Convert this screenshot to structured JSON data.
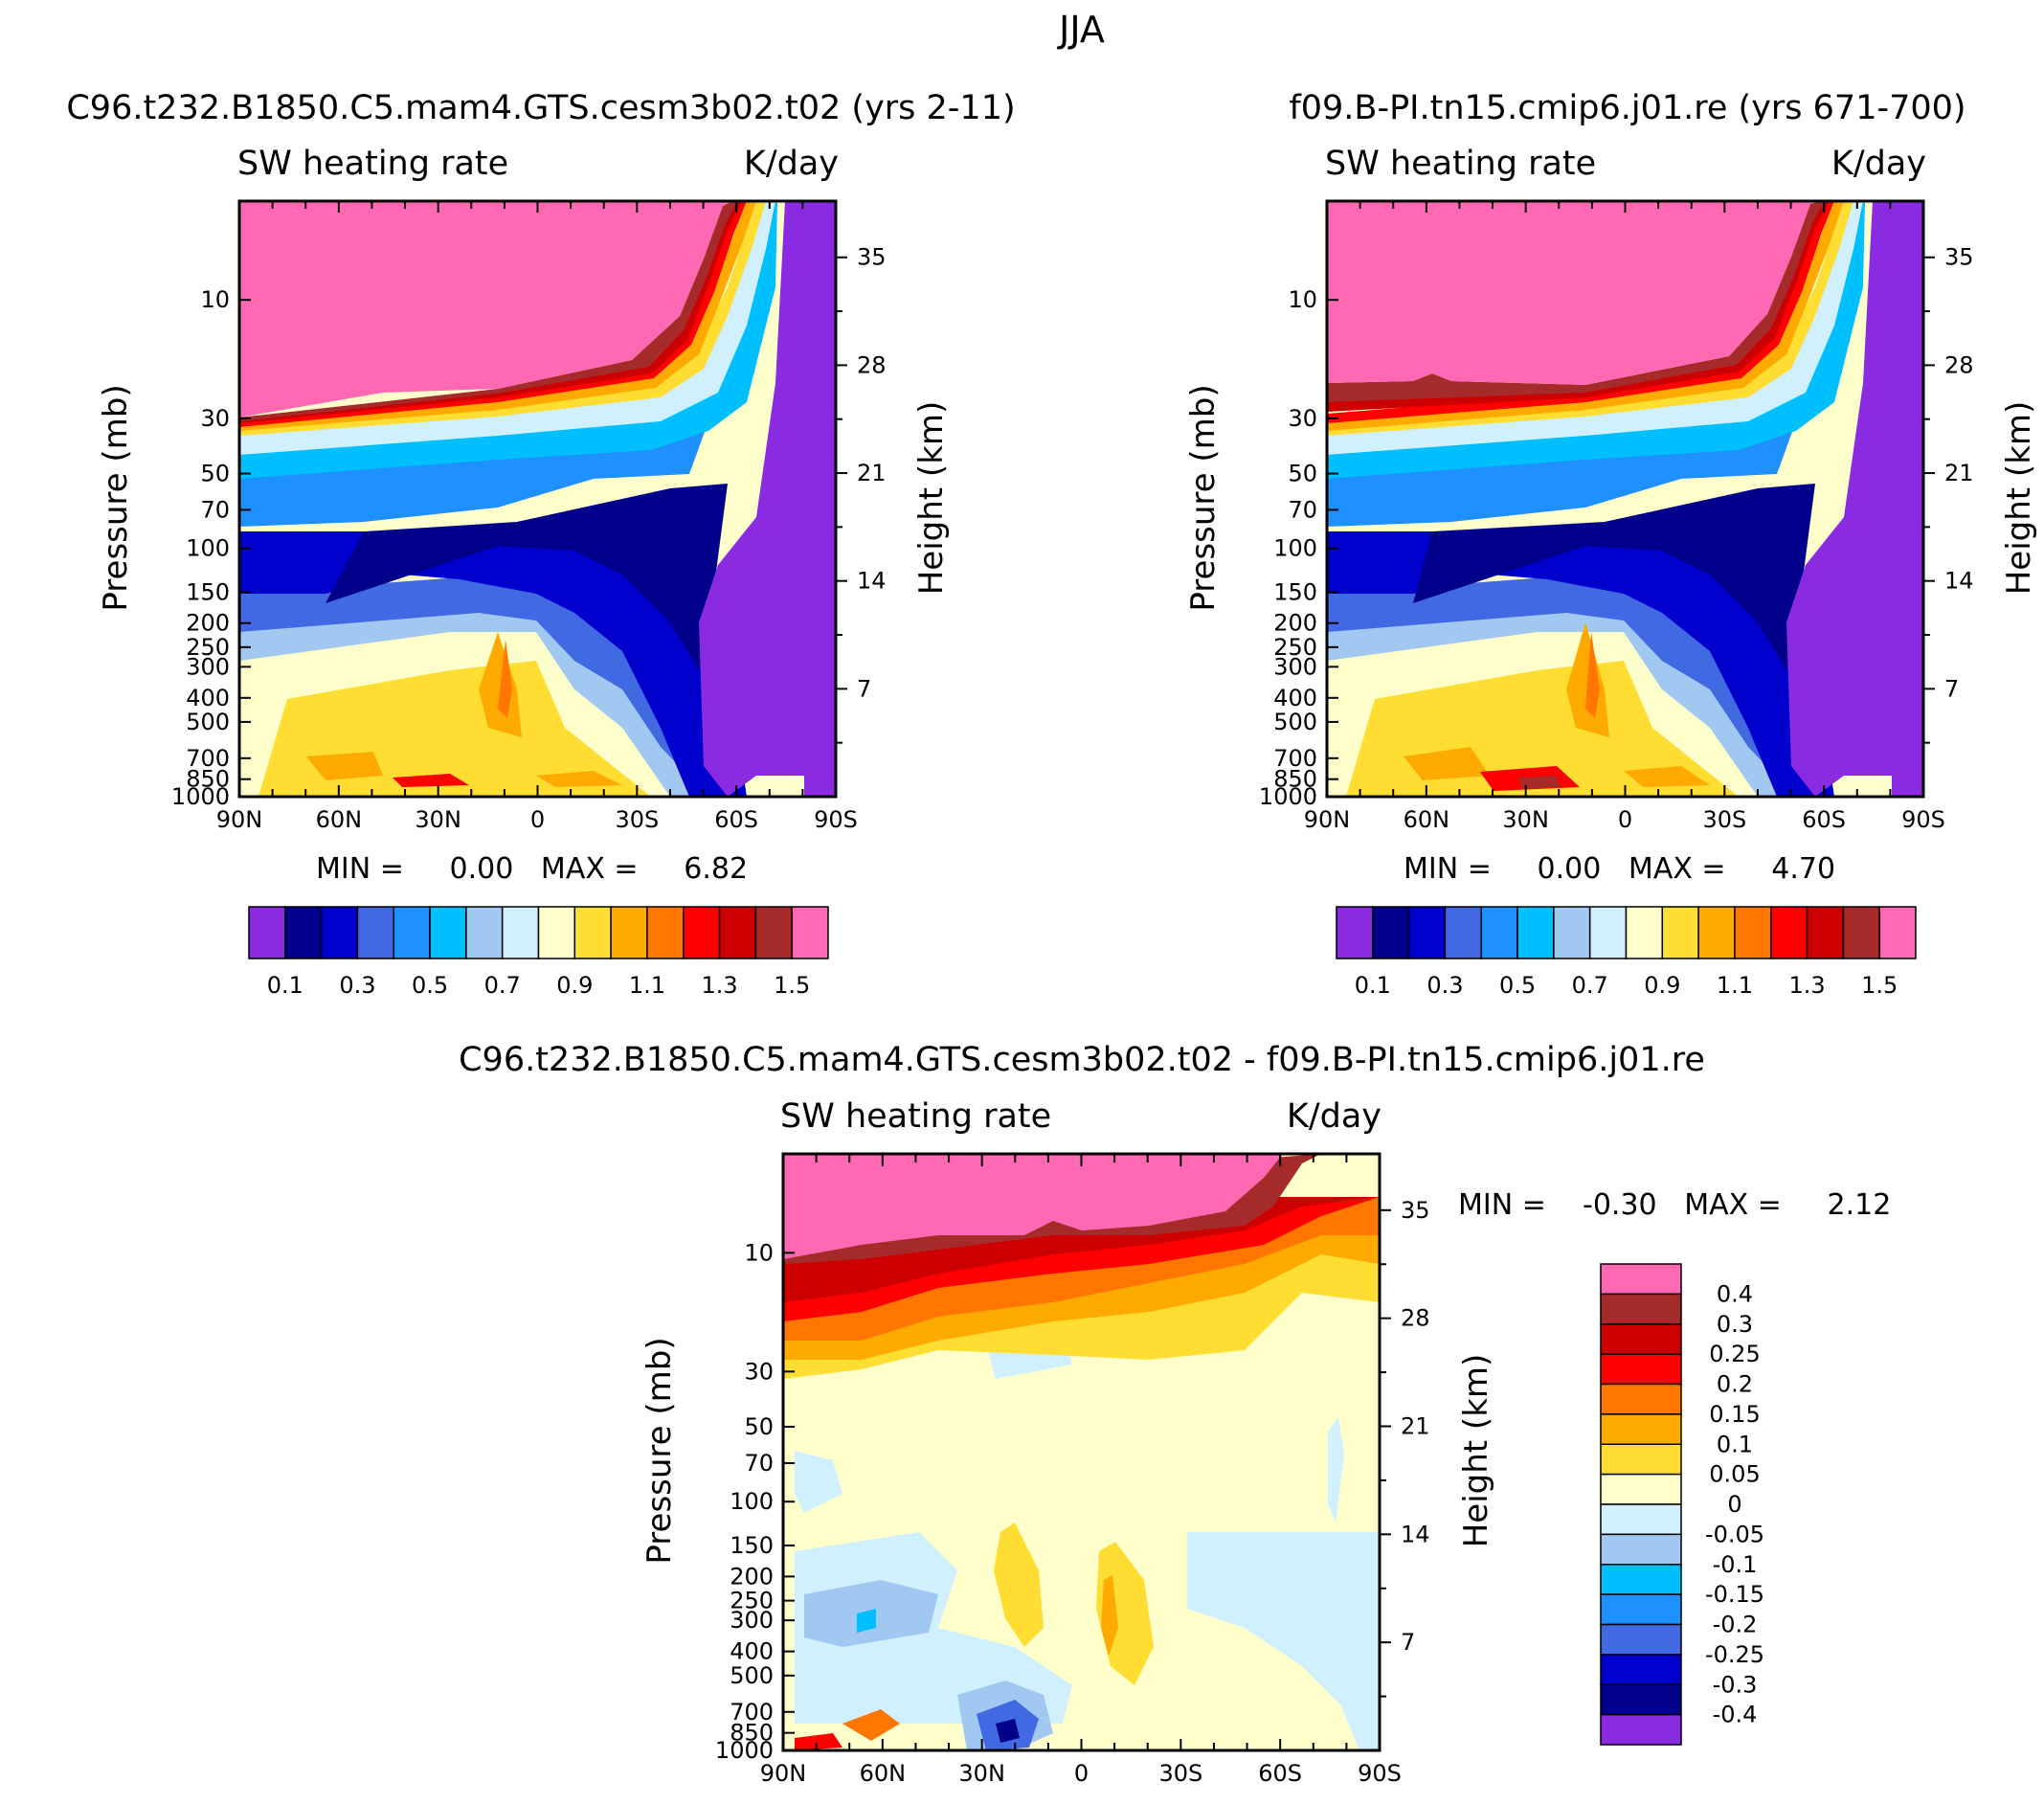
{
  "figure_title": "JJA",
  "colors": {
    "purple": "#8A2BE2",
    "navy": "#00008B",
    "dkblue": "#0000CD",
    "royal": "#4169E1",
    "dodger": "#1E90FF",
    "deepsky": "#00BFFF",
    "ltblue": "#A0C8F0",
    "palecyan": "#D0F0FF",
    "cream": "#FFFFCC",
    "gold": "#FFDD33",
    "orange": "#FFAA00",
    "dkorange": "#FF7700",
    "red": "#FF0000",
    "crimson": "#CC0000",
    "brown": "#A52A2A",
    "pink": "#FF69B4"
  },
  "chart_data": [
    {
      "type": "heatmap",
      "title": "C96.t232.B1850.C5.mam4.GTS.cesm3b02.t02 (yrs 2-11)",
      "left_label": "SW heating rate",
      "right_label": "K/day",
      "xlabel": "",
      "ylabel": "Pressure (mb)",
      "y2label": "Height (km)",
      "x_ticks": [
        "90N",
        "60N",
        "30N",
        "0",
        "30S",
        "60S",
        "90S"
      ],
      "y_ticks": [
        10,
        30,
        50,
        70,
        100,
        150,
        200,
        250,
        300,
        400,
        500,
        700,
        850,
        1000
      ],
      "y2_ticks": [
        35,
        28,
        21,
        14,
        7
      ],
      "y_scale": "log",
      "ylim": [
        1000,
        4
      ],
      "stats_text": "MIN =     0.00   MAX =     6.82",
      "min": 0.0,
      "max": 6.82,
      "colorbar": {
        "orientation": "horizontal",
        "levels": [
          0.1,
          0.2,
          0.3,
          0.4,
          0.5,
          0.6,
          0.7,
          0.8,
          0.9,
          1.0,
          1.1,
          1.2,
          1.3,
          1.4,
          1.5
        ],
        "labels": [
          "0.1",
          "0.3",
          "0.5",
          "0.7",
          "0.9",
          "1.1",
          "1.3",
          "1.5"
        ]
      }
    },
    {
      "type": "heatmap",
      "title": "f09.B-PI.tn15.cmip6.j01.re (yrs 671-700)",
      "left_label": "SW heating rate",
      "right_label": "K/day",
      "xlabel": "",
      "ylabel": "Pressure (mb)",
      "y2label": "Height (km)",
      "x_ticks": [
        "90N",
        "60N",
        "30N",
        "0",
        "30S",
        "60S",
        "90S"
      ],
      "y_ticks": [
        10,
        30,
        50,
        70,
        100,
        150,
        200,
        250,
        300,
        400,
        500,
        700,
        850,
        1000
      ],
      "y2_ticks": [
        35,
        28,
        21,
        14,
        7
      ],
      "y_scale": "log",
      "ylim": [
        1000,
        4
      ],
      "stats_text": "MIN =     0.00   MAX =     4.70",
      "min": 0.0,
      "max": 4.7,
      "colorbar": {
        "orientation": "horizontal",
        "levels": [
          0.1,
          0.2,
          0.3,
          0.4,
          0.5,
          0.6,
          0.7,
          0.8,
          0.9,
          1.0,
          1.1,
          1.2,
          1.3,
          1.4,
          1.5
        ],
        "labels": [
          "0.1",
          "0.3",
          "0.5",
          "0.7",
          "0.9",
          "1.1",
          "1.3",
          "1.5"
        ]
      }
    },
    {
      "type": "heatmap",
      "title": "C96.t232.B1850.C5.mam4.GTS.cesm3b02.t02 - f09.B-PI.tn15.cmip6.j01.re",
      "left_label": "SW heating rate",
      "right_label": "K/day",
      "xlabel": "",
      "ylabel": "Pressure (mb)",
      "y2label": "Height (km)",
      "x_ticks": [
        "90N",
        "60N",
        "30N",
        "0",
        "30S",
        "60S",
        "90S"
      ],
      "y_ticks": [
        10,
        30,
        50,
        70,
        100,
        150,
        200,
        250,
        300,
        400,
        500,
        700,
        850,
        1000
      ],
      "y2_ticks": [
        35,
        28,
        21,
        14,
        7
      ],
      "y_scale": "log",
      "ylim": [
        1000,
        4
      ],
      "stats_text": "MIN =    -0.30   MAX =     2.12",
      "min": -0.3,
      "max": 2.12,
      "colorbar": {
        "orientation": "vertical",
        "labels": [
          "0.4",
          "0.3",
          "0.25",
          "0.2",
          "0.15",
          "0.1",
          "0.05",
          "0",
          "-0.05",
          "-0.1",
          "-0.15",
          "-0.2",
          "-0.25",
          "-0.3",
          "-0.4"
        ]
      }
    }
  ]
}
